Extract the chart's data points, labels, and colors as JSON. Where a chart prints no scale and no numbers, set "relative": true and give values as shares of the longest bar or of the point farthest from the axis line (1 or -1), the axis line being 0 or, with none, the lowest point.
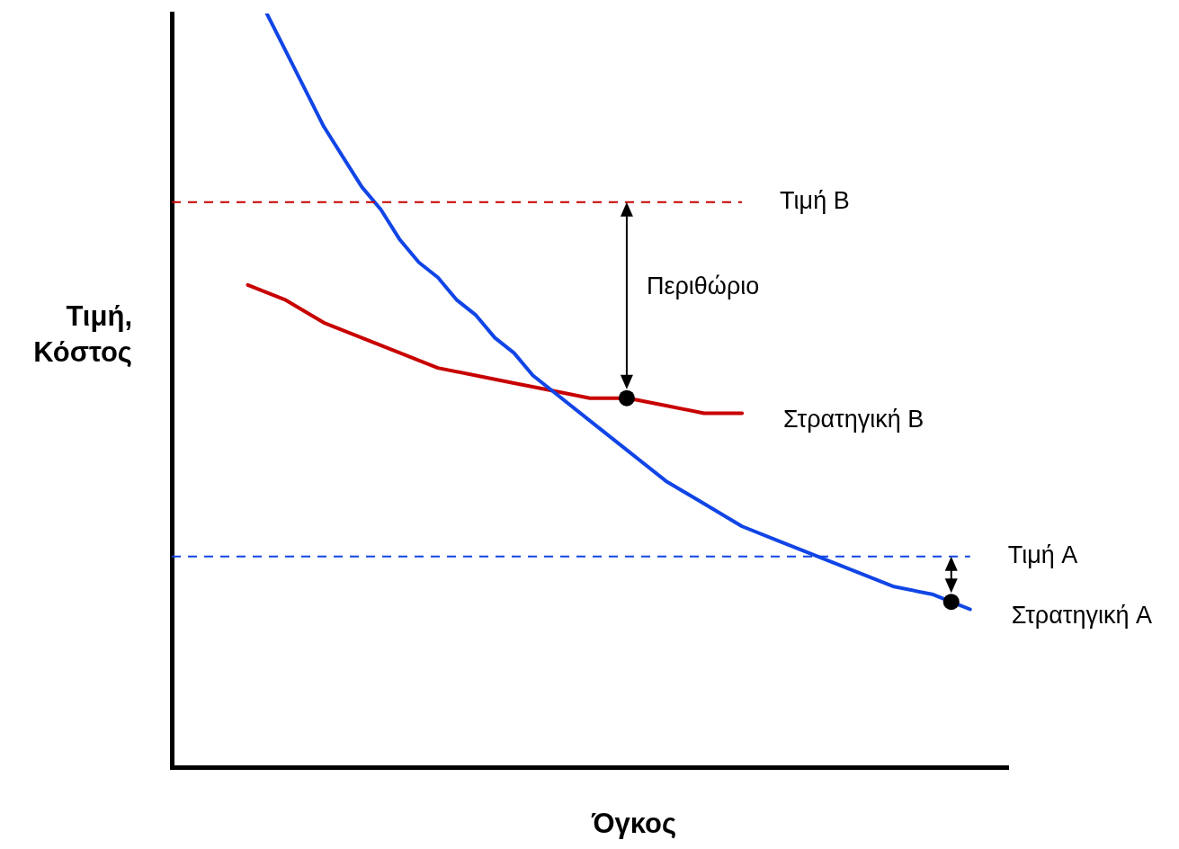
{
  "chart_data": {
    "type": "line",
    "relative": true,
    "xlabel": "Όγκος",
    "ylabel": "Τιμή, Κόστος",
    "legend": false,
    "marker": "none",
    "line_style": "solid",
    "categories": [
      null,
      null,
      null,
      null,
      null,
      null,
      null,
      null,
      null,
      null,
      null,
      null,
      null,
      null,
      null,
      null,
      null,
      null,
      null,
      null,
      null,
      null,
      null,
      null,
      null,
      null,
      null,
      null,
      null,
      null,
      null,
      null,
      null,
      null,
      null,
      null,
      null,
      null,
      null,
      null,
      null,
      null,
      null,
      null,
      null
    ],
    "series": [
      {
        "name": "Στρατηγική A",
        "color": "#1145e6",
        "values": [
          null,
          null,
          null,
          null,
          null,
          1,
          0.95,
          0.9,
          0.85,
          0.81,
          0.77,
          0.74,
          0.7,
          0.67,
          0.65,
          0.62,
          0.6,
          0.57,
          0.55,
          0.52,
          0.5,
          null,
          0.46,
          null,
          0.42,
          null,
          0.38,
          null,
          0.35,
          null,
          0.32,
          null,
          0.3,
          null,
          0.28,
          null,
          0.26,
          null,
          0.24,
          null,
          0.23,
          0.22,
          0.21,
          null,
          null
        ]
      },
      {
        "name": "Στρατηγική B",
        "color": "#c80000",
        "values": [
          null,
          null,
          null,
          null,
          0.64,
          null,
          0.62,
          null,
          0.59,
          null,
          0.57,
          null,
          0.55,
          null,
          0.53,
          null,
          0.52,
          null,
          0.51,
          null,
          0.5,
          null,
          0.49,
          null,
          0.49,
          null,
          0.48,
          null,
          0.47,
          null,
          0.47,
          null,
          null,
          null,
          null,
          null,
          null,
          null,
          null,
          null,
          null,
          null,
          null,
          null,
          null
        ]
      }
    ],
    "ref_lines": [
      {
        "axis": "y",
        "value": 0.75,
        "label": "Τιμή B",
        "color": "#c80000",
        "line_style": "dashed"
      },
      {
        "axis": "y",
        "value": 0.28,
        "label": "Τιμή A",
        "color": "#1145e6",
        "line_style": "dashed"
      }
    ],
    "annotations": [
      "Περιθώριο"
    ]
  }
}
